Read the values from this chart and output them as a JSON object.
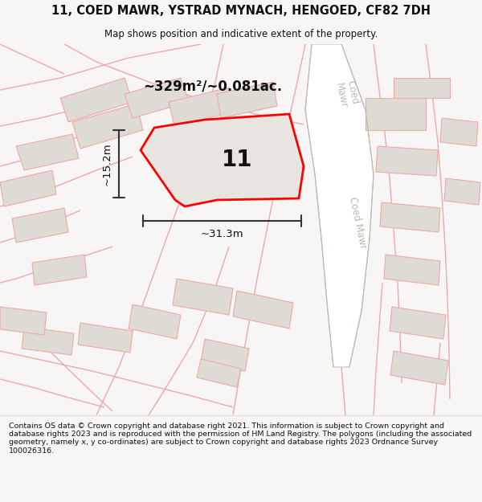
{
  "title_line1": "11, COED MAWR, YSTRAD MYNACH, HENGOED, CF82 7DH",
  "title_line2": "Map shows position and indicative extent of the property.",
  "footer_text": "Contains OS data © Crown copyright and database right 2021. This information is subject to Crown copyright and database rights 2023 and is reproduced with the permission of HM Land Registry. The polygons (including the associated geometry, namely x, y co-ordinates) are subject to Crown copyright and database rights 2023 Ordnance Survey 100026316.",
  "area_text": "~329m²/~0.081ac.",
  "number_label": "11",
  "dim_width": "~31.3m",
  "dim_height": "~15.2m",
  "road_label1": "Coed",
  "road_label2": "Mawr",
  "road_label3": "Coed Mawr",
  "map_bg": "#f0eeec",
  "road_fill": "#ffffff",
  "building_fill": "#dedad4",
  "plot_fill": "#e8e5e0",
  "plot_outline_color": "#ff0000",
  "road_edge_color": "#c8c0b8",
  "parcel_line_color": "#f0a8a8",
  "dim_line_color": "#333333",
  "text_color_dark": "#111111",
  "text_color_road": "#b0a8a0",
  "footer_bg": "#ffffff",
  "title_bg": "#f8f6f4"
}
